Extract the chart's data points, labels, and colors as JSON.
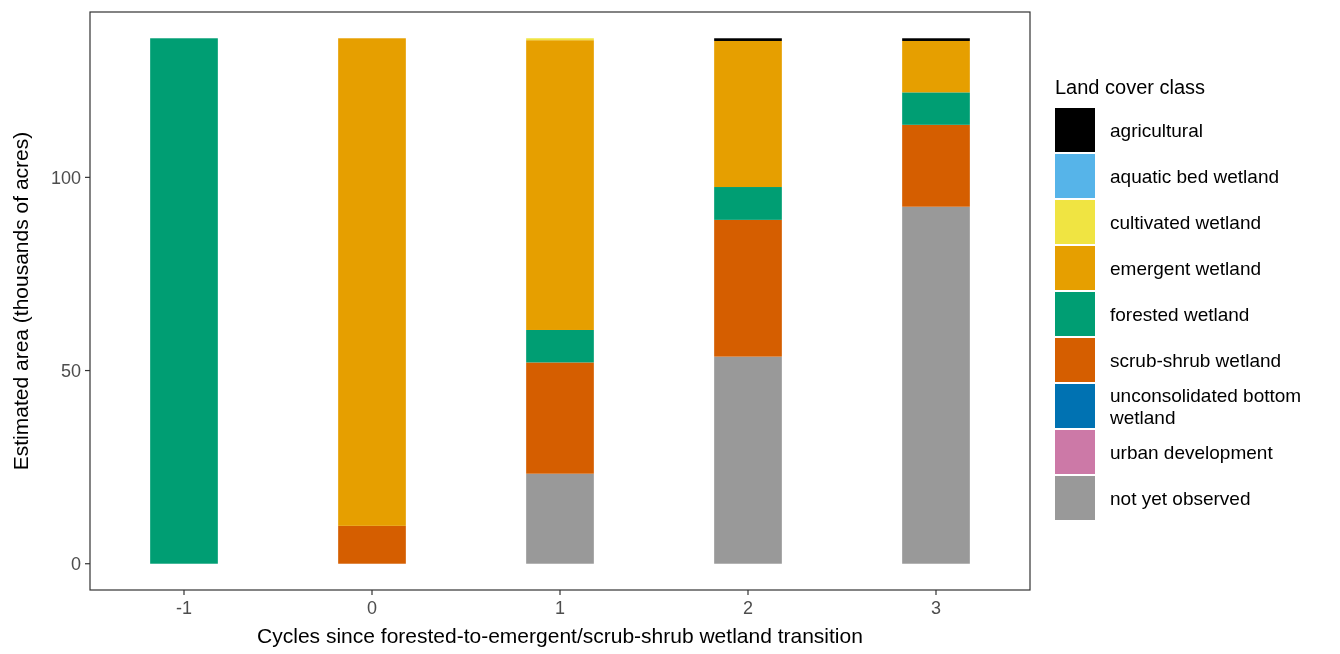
{
  "chart_data": {
    "type": "bar",
    "stacked": true,
    "xlabel": "Cycles since forested-to-emergent/scrub-shrub wetland transition",
    "ylabel": "Estimated area (thousands of acres)",
    "legend_title": "Land cover class",
    "legend": "right",
    "grid": false,
    "categories": [
      "-1",
      "0",
      "1",
      "2",
      "3"
    ],
    "ylim": [
      -6.8,
      142.8
    ],
    "yticks": [
      0,
      50,
      100
    ],
    "series": [
      {
        "name": "not yet observed",
        "color": "#999999",
        "values": [
          null,
          null,
          23.3,
          53.6,
          92.4
        ]
      },
      {
        "name": "urban development",
        "color": "#cc79a7",
        "values": [
          null,
          null,
          null,
          null,
          null
        ]
      },
      {
        "name": "unconsolidated bottom wetland",
        "color": "#0072b2",
        "values": [
          null,
          null,
          null,
          null,
          null
        ]
      },
      {
        "name": "scrub-shrub wetland",
        "color": "#d55e00",
        "values": [
          null,
          9.8,
          28.8,
          35.4,
          21.2
        ]
      },
      {
        "name": "forested wetland",
        "color": "#009e73",
        "values": [
          136,
          null,
          8.4,
          8.5,
          8.4
        ]
      },
      {
        "name": "emergent wetland",
        "color": "#e69f00",
        "values": [
          null,
          126.2,
          75.0,
          37.8,
          13.3
        ]
      },
      {
        "name": "cultivated wetland",
        "color": "#f0e442",
        "values": [
          null,
          null,
          0.5,
          null,
          null
        ]
      },
      {
        "name": "aquatic bed wetland",
        "color": "#56b4e9",
        "values": [
          null,
          null,
          null,
          null,
          null
        ]
      },
      {
        "name": "agricultural",
        "color": "#000000",
        "values": [
          null,
          null,
          null,
          0.7,
          0.7
        ]
      }
    ]
  }
}
